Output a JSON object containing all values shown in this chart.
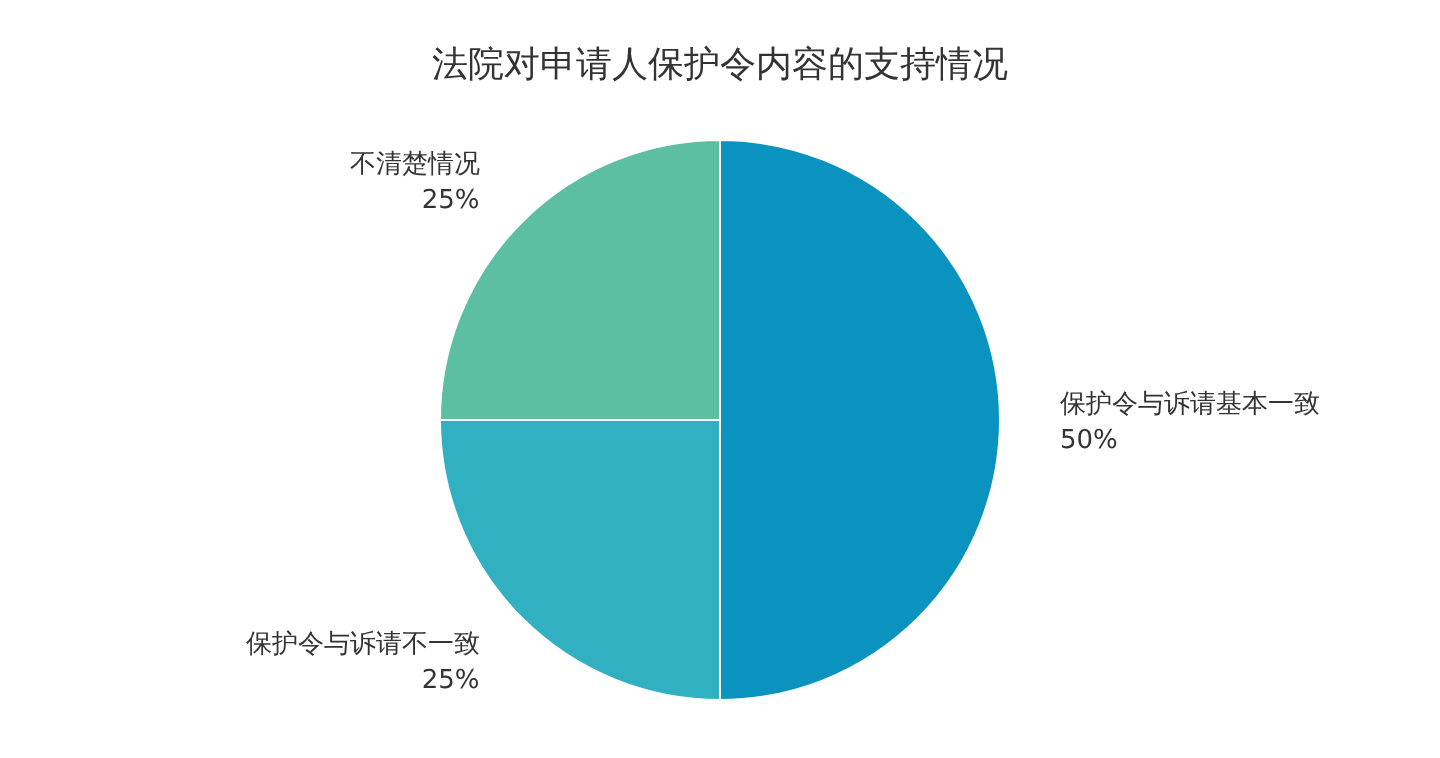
{
  "chart_data": {
    "type": "pie",
    "title": "法院对申请人保护令内容的支持情况",
    "categories": [
      "保护令与诉请基本一致",
      "保护令与诉请不一致",
      "不清楚情况"
    ],
    "values": [
      50,
      25,
      25
    ],
    "colors": [
      "#0b93c0",
      "#30b0c0",
      "#5cbfa2"
    ],
    "value_labels": [
      "50%",
      "25%",
      "25%"
    ],
    "legend": false
  }
}
